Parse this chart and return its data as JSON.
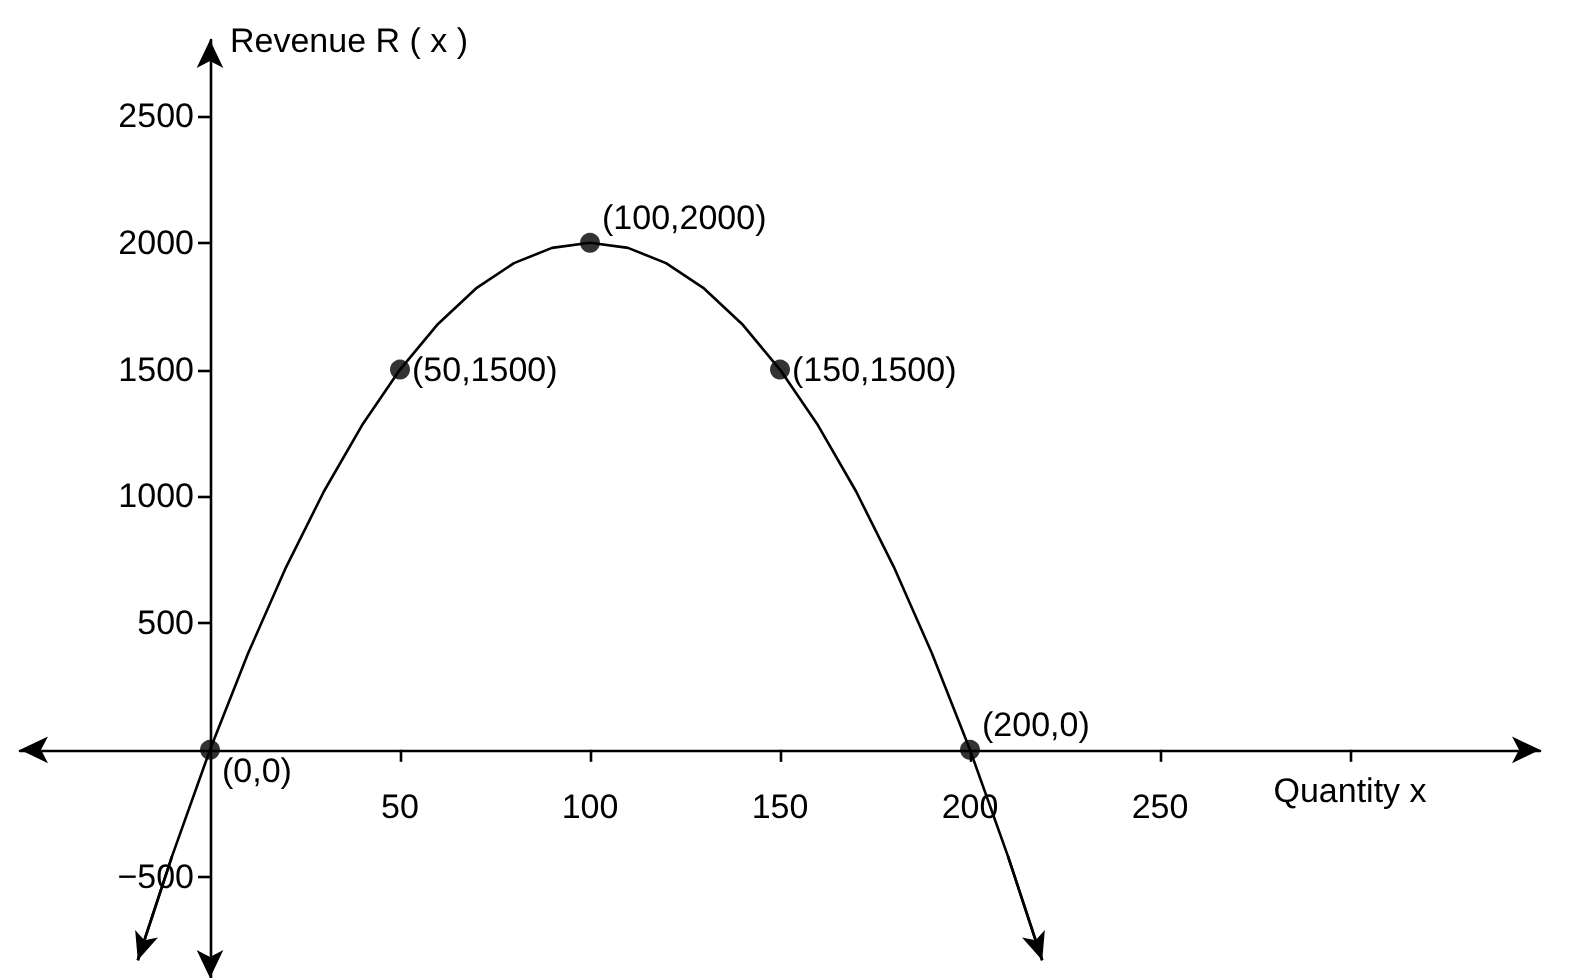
{
  "chart_data": {
    "type": "line",
    "xlabel": "Quantity x",
    "ylabel": "Revenue R ( x )",
    "xlim": [
      -50,
      350
    ],
    "ylim": [
      -900,
      2800
    ],
    "xticks": [
      50,
      100,
      150,
      200,
      250,
      {
        "value": 300,
        "label": null
      }
    ],
    "yticks": [
      {
        "value": -500,
        "label": "−500"
      },
      500,
      1000,
      1500,
      2000,
      2500
    ],
    "grid": false,
    "series": [
      {
        "color": "#000000",
        "marker": "none",
        "x": [
          -19,
          -10,
          0,
          10,
          20,
          30,
          40,
          50,
          60,
          70,
          80,
          90,
          100,
          110,
          120,
          130,
          140,
          150,
          160,
          170,
          180,
          190,
          200,
          210,
          219
        ],
        "values": [
          -830,
          -420,
          0,
          380,
          720,
          1020,
          1280,
          1500,
          1680,
          1820,
          1920,
          1980,
          2000,
          1980,
          1920,
          1820,
          1680,
          1500,
          1280,
          1020,
          720,
          380,
          0,
          -420,
          -830
        ]
      },
      {
        "type": "scatter",
        "color": "#000000",
        "marker": "circle",
        "x": [
          0,
          50,
          100,
          150,
          200
        ],
        "values": [
          0,
          1500,
          2000,
          1500,
          0
        ]
      }
    ],
    "annotations": [
      {
        "text": "(0,0)",
        "x": 0,
        "y": 0
      },
      {
        "text": "(50,1500)",
        "x": 50,
        "y": 1500
      },
      {
        "text": "(100,2000)",
        "x": 100,
        "y": 2000
      },
      {
        "text": "(150,1500)",
        "x": 150,
        "y": 1500
      },
      {
        "text": "(200,0)",
        "x": 200,
        "y": 0
      }
    ]
  }
}
